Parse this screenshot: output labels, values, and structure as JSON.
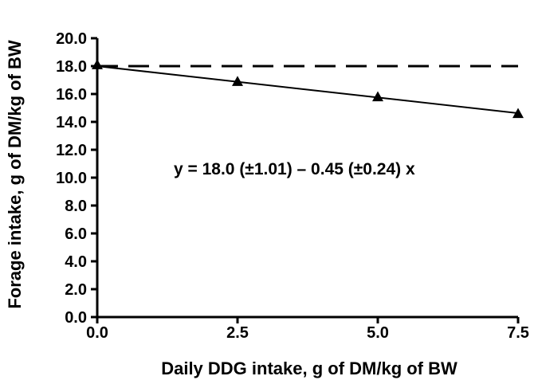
{
  "chart_data": {
    "type": "scatter",
    "xlabel": "Daily DDG intake, g of DM/kg of BW",
    "ylabel": "Forage intake, g of DM/kg of BW",
    "xlim": [
      0,
      7.5
    ],
    "ylim": [
      0,
      20
    ],
    "x_ticks": [
      "0.0",
      "2.5",
      "5.0",
      "7.5"
    ],
    "y_ticks": [
      "0.0",
      "2.0",
      "4.0",
      "6.0",
      "8.0",
      "10.0",
      "12.0",
      "14.0",
      "16.0",
      "18.0",
      "20.0"
    ],
    "series": [
      {
        "marker": "triangle",
        "points": [
          {
            "x": 0.0,
            "y": 18.1
          },
          {
            "x": 2.5,
            "y": 16.9
          },
          {
            "x": 5.0,
            "y": 15.8
          },
          {
            "x": 7.5,
            "y": 14.6
          }
        ]
      }
    ],
    "regression_line": {
      "intercept": 18.0,
      "slope": -0.45,
      "style": "solid"
    },
    "reference_line": {
      "y": 18.0,
      "style": "dashed"
    },
    "annotation": "y = 18.0 (±1.01) – 0.45 (±0.24) x",
    "grid": false,
    "legend": "none",
    "colors": {
      "ink": "#000000",
      "background": "#ffffff"
    }
  }
}
